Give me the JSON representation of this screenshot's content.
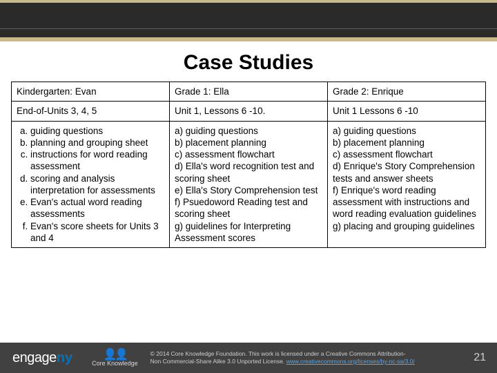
{
  "title": "Case Studies",
  "table": {
    "columns": 3,
    "border_color": "#000000",
    "font_size": 13.5,
    "rows": [
      {
        "cells": [
          "Kindergarten: Evan",
          "Grade 1: Ella",
          "Grade 2: Enrique"
        ],
        "style": "header"
      },
      {
        "cells": [
          "End-of-Units 3, 4, 5",
          "Unit 1, Lessons 6 -10.",
          "Unit 1 Lessons 6 -10"
        ],
        "style": "header"
      },
      {
        "cells": [
          {
            "type": "ol",
            "items": [
              "guiding questions",
              "planning and grouping sheet",
              "instructions for word reading assessment",
              "scoring and analysis interpretation for assessments",
              "Evan's actual word reading assessments",
              "Evan's score sheets for Units 3 and 4"
            ]
          },
          "a) guiding questions\nb) placement planning\nc) assessment flowchart\nd) Ella's word recognition test and scoring sheet\ne) Ella's Story Comprehension test\nf) Psuedoword Reading test and scoring sheet\ng) guidelines for Interpreting Assessment scores",
          "a) guiding questions\nb) placement planning\nc) assessment flowchart\nd) Enrique's Story Comprehension tests and answer sheets\nf)  Enrique's word reading assessment with instructions and word reading evaluation guidelines\ng) placing and grouping guidelines"
        ]
      }
    ]
  },
  "footer": {
    "logo_text_1": "engage",
    "logo_text_2": "ny",
    "ck_label": "Core Knowledge",
    "copyright_line1": "© 2014 Core Knowledge Foundation. This work is licensed under a Creative Commons Attribution-",
    "copyright_line2": "Non Commercial-Share Alike 3.0 Unported License. ",
    "copyright_link": "www.creativecommons.org/licenses/by-nc-sa/3.0/",
    "page_number": "21"
  },
  "colors": {
    "chalkboard_bg": "#2a2a2a",
    "chalkboard_trim": "#c9b98a",
    "footer_bg": "#414141",
    "link": "#5aa7e6",
    "ny_blue": "#0b6fb5"
  }
}
